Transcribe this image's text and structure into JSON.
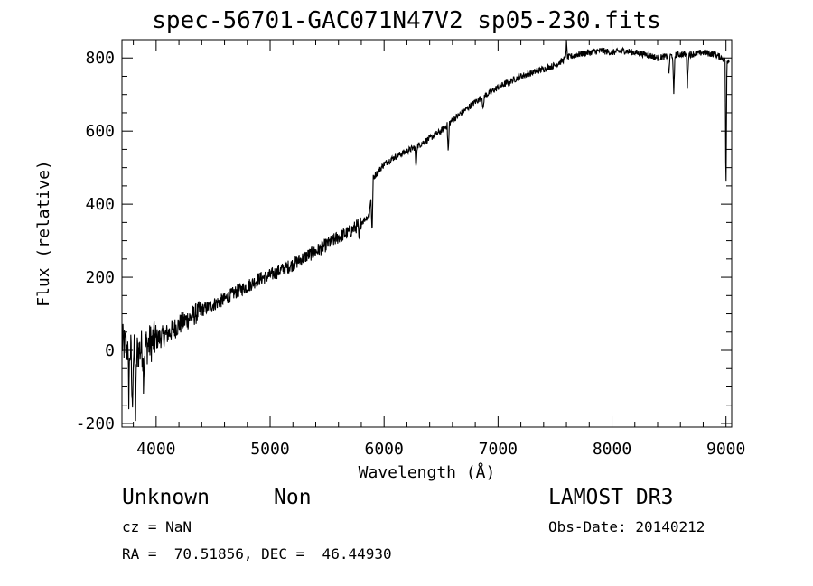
{
  "chart_data": {
    "type": "line",
    "title": "spec-56701-GAC071N47V2_sp05-230.fits",
    "xlabel": "Wavelength (Å)",
    "ylabel": "Flux (relative)",
    "xlim": [
      3700,
      9050
    ],
    "ylim": [
      -210,
      850
    ],
    "x_ticks": [
      4000,
      5000,
      6000,
      7000,
      8000,
      9000
    ],
    "x_tick_labels": [
      "4000",
      "5000",
      "6000",
      "7000",
      "8000",
      "9000"
    ],
    "y_ticks": [
      -200,
      0,
      200,
      400,
      600,
      800
    ],
    "y_tick_labels": [
      "-200",
      "0",
      "200",
      "400",
      "600",
      "800"
    ],
    "grid": false,
    "series": [
      {
        "name": "spectrum",
        "anchors": [
          [
            3700,
            20
          ],
          [
            3800,
            -10
          ],
          [
            3900,
            10
          ],
          [
            4000,
            30
          ],
          [
            4100,
            45
          ],
          [
            4200,
            70
          ],
          [
            4300,
            90
          ],
          [
            4400,
            110
          ],
          [
            4500,
            125
          ],
          [
            4600,
            140
          ],
          [
            4700,
            160
          ],
          [
            4800,
            175
          ],
          [
            4900,
            195
          ],
          [
            5000,
            205
          ],
          [
            5100,
            220
          ],
          [
            5200,
            235
          ],
          [
            5300,
            255
          ],
          [
            5400,
            270
          ],
          [
            5500,
            290
          ],
          [
            5600,
            310
          ],
          [
            5700,
            325
          ],
          [
            5800,
            350
          ],
          [
            5870,
            370
          ],
          [
            5900,
            470
          ],
          [
            6000,
            510
          ],
          [
            6100,
            530
          ],
          [
            6200,
            545
          ],
          [
            6300,
            560
          ],
          [
            6400,
            580
          ],
          [
            6500,
            600
          ],
          [
            6600,
            630
          ],
          [
            6700,
            655
          ],
          [
            6800,
            680
          ],
          [
            6900,
            700
          ],
          [
            7000,
            720
          ],
          [
            7100,
            735
          ],
          [
            7200,
            750
          ],
          [
            7300,
            760
          ],
          [
            7400,
            770
          ],
          [
            7500,
            780
          ],
          [
            7600,
            800
          ],
          [
            7700,
            810
          ],
          [
            7800,
            815
          ],
          [
            7900,
            820
          ],
          [
            8000,
            815
          ],
          [
            8100,
            820
          ],
          [
            8200,
            815
          ],
          [
            8300,
            810
          ],
          [
            8400,
            800
          ],
          [
            8500,
            805
          ],
          [
            8600,
            810
          ],
          [
            8700,
            810
          ],
          [
            8800,
            815
          ],
          [
            8900,
            810
          ],
          [
            9000,
            795
          ]
        ],
        "features": [
          {
            "x": 3760,
            "depth": -120
          },
          {
            "x": 3790,
            "depth": -160
          },
          {
            "x": 3820,
            "depth": -180
          },
          {
            "x": 3890,
            "depth": -80
          },
          {
            "x": 5780,
            "depth": -50
          },
          {
            "x": 5895,
            "depth": -140
          },
          {
            "x": 6280,
            "depth": -60
          },
          {
            "x": 6563,
            "depth": -80
          },
          {
            "x": 6870,
            "depth": -40
          },
          {
            "x": 7600,
            "depth": 40
          },
          {
            "x": 8498,
            "depth": -60
          },
          {
            "x": 8542,
            "depth": -110
          },
          {
            "x": 8662,
            "depth": -90
          },
          {
            "x": 9000,
            "depth": -380
          }
        ]
      }
    ]
  },
  "info": {
    "object_class": "Unknown",
    "object_subclass": "Non",
    "survey": "LAMOST DR3",
    "redshift": "cz = NaN",
    "obs_date": "Obs-Date: 20140212",
    "coordinates": "RA =  70.51856, DEC =  46.44930"
  }
}
